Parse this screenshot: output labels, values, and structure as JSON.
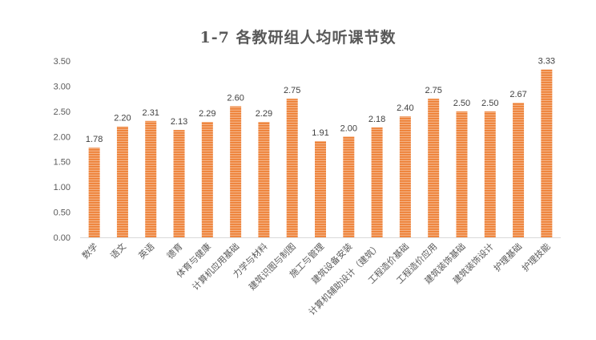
{
  "chart_data": {
    "type": "bar",
    "title": "1-7 各教研组人均听课节数",
    "xlabel": "",
    "ylabel": "",
    "ylim": [
      0,
      3.5
    ],
    "yticks": [
      "0.00",
      "0.50",
      "1.00",
      "1.50",
      "2.00",
      "2.50",
      "3.00",
      "3.50"
    ],
    "grid": false,
    "legend": "none",
    "bar_color": "#ED7D31",
    "categories": [
      "数学",
      "语文",
      "英语",
      "德育",
      "体育与健康",
      "计算机应用基础",
      "力学与材料",
      "建筑识图与制图",
      "施工与管理",
      "建筑设备安装",
      "计算机辅助设计（建筑）",
      "工程造价基础",
      "工程造价应用",
      "建筑装饰基础",
      "建筑装饰设计",
      "护理基础",
      "护理技能"
    ],
    "values": [
      1.78,
      2.2,
      2.31,
      2.13,
      2.29,
      2.6,
      2.29,
      2.75,
      1.91,
      2.0,
      2.18,
      2.4,
      2.75,
      2.5,
      2.5,
      2.67,
      3.33
    ],
    "value_labels": [
      "1.78",
      "2.20",
      "2.31",
      "2.13",
      "2.29",
      "2.60",
      "2.29",
      "2.75",
      "1.91",
      "2.00",
      "2.18",
      "2.40",
      "2.75",
      "2.50",
      "2.50",
      "2.67",
      "3.33"
    ]
  }
}
